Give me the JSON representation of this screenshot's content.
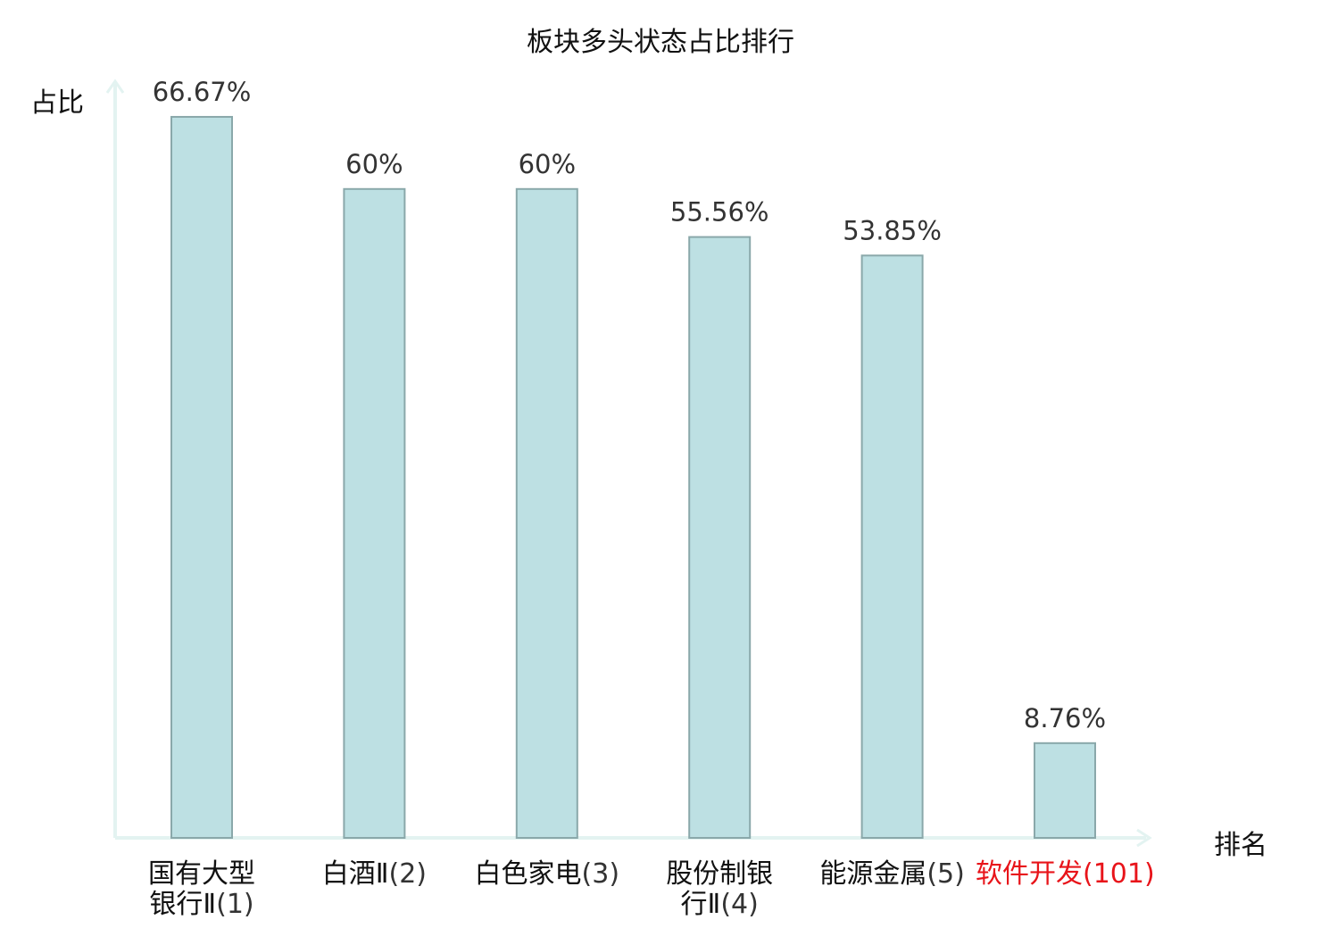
{
  "chart_data": {
    "type": "bar",
    "title": "板块多头状态占比排行",
    "xlabel": "排名",
    "ylabel": "占比",
    "ylim": [
      0,
      70
    ],
    "categories": [
      {
        "name_lines": [
          "国有大型",
          "银行Ⅱ"
        ],
        "rank": "(1)",
        "highlight": false
      },
      {
        "name_lines": [
          "白酒Ⅱ"
        ],
        "rank": "(2)",
        "highlight": false
      },
      {
        "name_lines": [
          "白色家电"
        ],
        "rank": "(3)",
        "highlight": false
      },
      {
        "name_lines": [
          "股份制银",
          "行Ⅱ"
        ],
        "rank": "(4)",
        "highlight": false
      },
      {
        "name_lines": [
          "能源金属"
        ],
        "rank": "(5)",
        "highlight": false
      },
      {
        "name_lines": [
          "软件开发"
        ],
        "rank": "(101)",
        "highlight": true
      }
    ],
    "values": [
      66.67,
      60,
      60,
      55.56,
      53.85,
      8.76
    ],
    "data_labels": [
      "66.67%",
      "60%",
      "60%",
      "55.56%",
      "53.85%",
      "8.76%"
    ],
    "colors": {
      "bar_fill": "#bde0e3",
      "bar_stroke": "#8aa8aa",
      "axis": "#e3f3f1",
      "highlight_text": "#e8141a",
      "label_text": "#333333"
    }
  }
}
